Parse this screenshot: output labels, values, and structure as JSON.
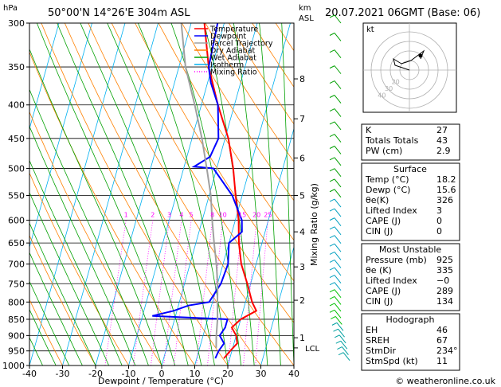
{
  "header": {
    "location": "50°00'N  14°26'E  304m  ASL",
    "datetime": "20.07.2021  06GMT  (Base: 06)",
    "hpa_unit": "hPa",
    "km_unit": "km",
    "asl_unit": "ASL"
  },
  "chart_data": {
    "type": "line",
    "title": "",
    "xlabel": "Dewpoint / Temperature (°C)",
    "ylabel": "hPa",
    "right_ylabel": "Mixing Ratio (g/kg)",
    "xlim": [
      -40,
      40
    ],
    "ylim": [
      1000,
      300
    ],
    "y_scale": "log",
    "x_ticks": [
      "-40",
      "-30",
      "-20",
      "-10",
      "0",
      "10",
      "20",
      "30",
      "40"
    ],
    "pressure_ticks": [
      "300",
      "350",
      "400",
      "450",
      "500",
      "550",
      "600",
      "650",
      "700",
      "750",
      "800",
      "850",
      "900",
      "950",
      "1000"
    ],
    "km_ticks": [
      {
        "km": "1",
        "p": 907
      },
      {
        "km": "2",
        "p": 795
      },
      {
        "km": "3",
        "p": 707
      },
      {
        "km": "4",
        "p": 625
      },
      {
        "km": "5",
        "p": 550
      },
      {
        "km": "6",
        "p": 482
      },
      {
        "km": "7",
        "p": 420
      },
      {
        "km": "8",
        "p": 365
      }
    ],
    "lcl": {
      "label": "LCL",
      "p": 940
    },
    "mixing_ratio_labels": [
      "1",
      "2",
      "3",
      "4",
      "5",
      "8",
      "10",
      "15",
      "20",
      "25"
    ],
    "mixing_ratio_values": [
      1,
      2,
      3,
      4,
      5,
      8,
      10,
      15,
      20,
      25
    ],
    "legend": {
      "placement": "top-right",
      "entries": [
        {
          "name": "Temperature",
          "color": "#ff0000"
        },
        {
          "name": "Dewpoint",
          "color": "#0000ff"
        },
        {
          "name": "Parcel Trajectory",
          "color": "#a0a0a0"
        },
        {
          "name": "Dry Adiabat",
          "color": "#ff8000"
        },
        {
          "name": "Wet Adiabat",
          "color": "#00a000"
        },
        {
          "name": "Isotherm",
          "color": "#00b0f0"
        },
        {
          "name": "Mixing Ratio",
          "color": "#ff00ff"
        }
      ]
    },
    "series": [
      {
        "name": "Temperature",
        "color": "#ff0000",
        "points": [
          [
            18.2,
            975
          ],
          [
            19.5,
            950
          ],
          [
            21,
            925
          ],
          [
            20,
            900
          ],
          [
            18,
            875
          ],
          [
            20,
            850
          ],
          [
            24,
            825
          ],
          [
            22,
            800
          ],
          [
            19,
            750
          ],
          [
            15.5,
            700
          ],
          [
            13,
            650
          ],
          [
            11,
            600
          ],
          [
            8,
            550
          ],
          [
            5,
            500
          ],
          [
            1,
            450
          ],
          [
            -5,
            400
          ],
          [
            -11,
            350
          ],
          [
            -16,
            300
          ]
        ]
      },
      {
        "name": "Dewpoint",
        "color": "#0000ff",
        "points": [
          [
            15.6,
            975
          ],
          [
            16,
            950
          ],
          [
            17,
            925
          ],
          [
            15,
            900
          ],
          [
            16,
            875
          ],
          [
            16,
            850
          ],
          [
            -7,
            840
          ],
          [
            -1,
            825
          ],
          [
            3,
            810
          ],
          [
            9,
            800
          ],
          [
            11,
            750
          ],
          [
            11.5,
            700
          ],
          [
            10,
            650
          ],
          [
            13,
            625
          ],
          [
            12,
            600
          ],
          [
            7,
            550
          ],
          [
            -1,
            500
          ],
          [
            -7,
            497
          ],
          [
            -3,
            480
          ],
          [
            -2,
            450
          ],
          [
            -5,
            400
          ],
          [
            -9,
            370
          ],
          [
            -11,
            350
          ],
          [
            -12,
            300
          ]
        ]
      },
      {
        "name": "Parcel Trajectory",
        "color": "#a0a0a0",
        "points": [
          [
            15,
            940
          ],
          [
            14,
            900
          ],
          [
            13,
            850
          ],
          [
            11.5,
            800
          ],
          [
            10,
            750
          ],
          [
            8,
            700
          ],
          [
            5.5,
            650
          ],
          [
            3,
            600
          ],
          [
            0.5,
            550
          ],
          [
            -3,
            500
          ],
          [
            -7,
            450
          ],
          [
            -12,
            400
          ],
          [
            -18,
            350
          ],
          [
            -23,
            300
          ]
        ]
      }
    ]
  },
  "indices": {
    "rows": [
      {
        "label": "K",
        "value": "27"
      },
      {
        "label": "Totals Totals",
        "value": "43"
      },
      {
        "label": "PW (cm)",
        "value": "2.9"
      }
    ]
  },
  "surface": {
    "title": "Surface",
    "rows": [
      {
        "label": "Temp (°C)",
        "value": "18.2"
      },
      {
        "label": "Dewp (°C)",
        "value": "15.6"
      },
      {
        "label": "θe(K)",
        "value": "326"
      },
      {
        "label": "Lifted Index",
        "value": "3"
      },
      {
        "label": "CAPE (J)",
        "value": "0"
      },
      {
        "label": "CIN (J)",
        "value": "0"
      }
    ]
  },
  "most_unstable": {
    "title": "Most Unstable",
    "rows": [
      {
        "label": "Pressure (mb)",
        "value": "925"
      },
      {
        "label": "θe (K)",
        "value": "335"
      },
      {
        "label": "Lifted Index",
        "value": "−0"
      },
      {
        "label": "CAPE (J)",
        "value": "289"
      },
      {
        "label": "CIN (J)",
        "value": "134"
      }
    ]
  },
  "hodograph_table": {
    "title": "Hodograph",
    "rows": [
      {
        "label": "EH",
        "value": "46"
      },
      {
        "label": "SREH",
        "value": "67"
      },
      {
        "label": "StmDir",
        "value": "234°"
      },
      {
        "label": "StmSpd (kt)",
        "value": "11"
      }
    ]
  },
  "hodograph": {
    "unit": "kt",
    "ring_labels": [
      "20",
      "30",
      "40"
    ]
  },
  "copyright": "© weatheronline.co.uk",
  "colors": {
    "temperature": "#ff0000",
    "dewpoint": "#0000ff",
    "parcel": "#a0a0a0",
    "dry_adiabat": "#ff8000",
    "wet_adiabat": "#00a000",
    "isotherm": "#00b0f0",
    "mixing_ratio": "#ff00ff"
  }
}
